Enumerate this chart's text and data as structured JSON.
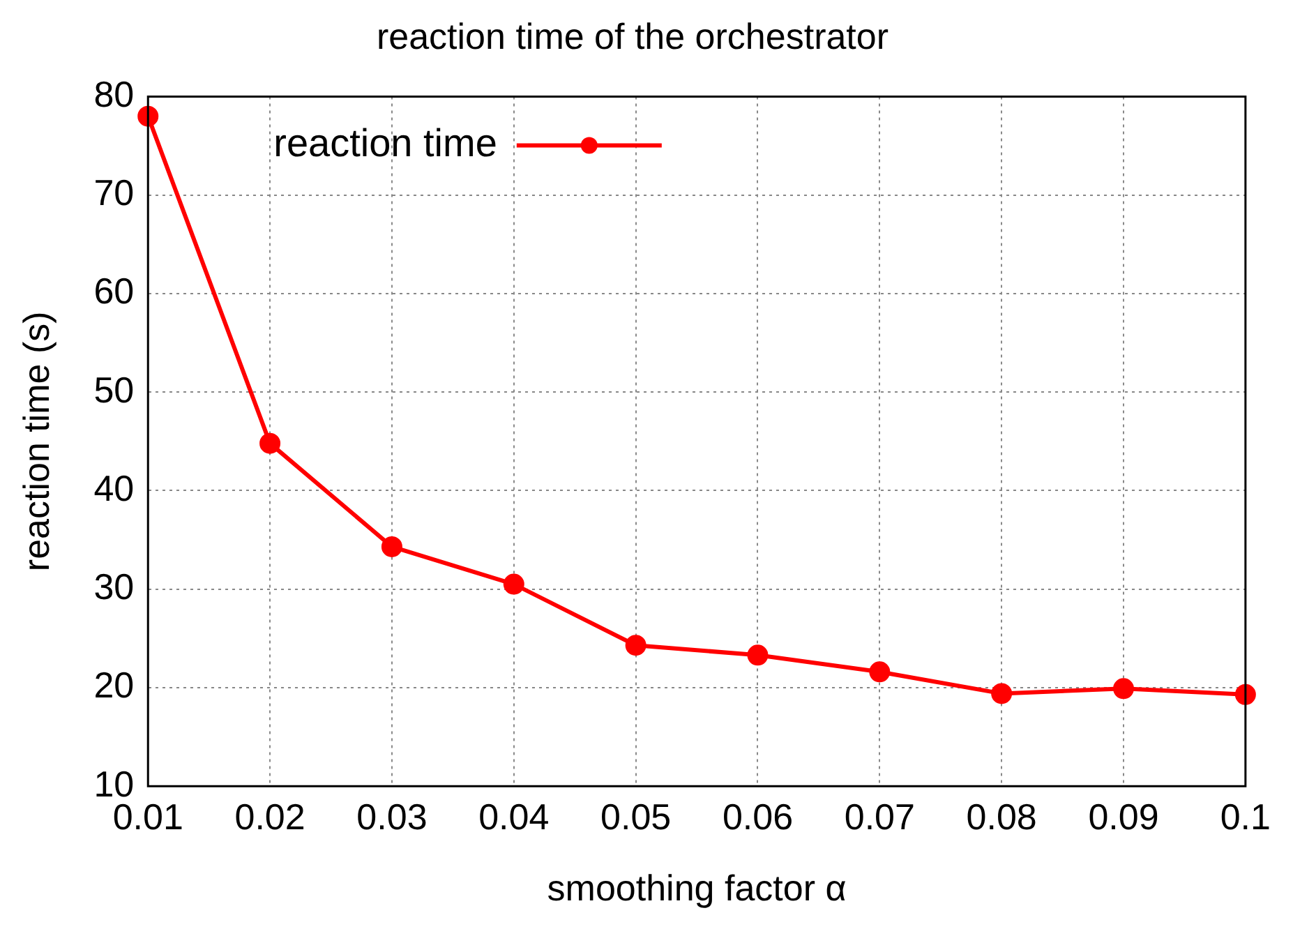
{
  "chart_data": {
    "type": "line",
    "title": "reaction time of the orchestrator",
    "xlabel": "smoothing factor α",
    "ylabel": "reaction time (s)",
    "x": [
      0.01,
      0.02,
      0.03,
      0.04,
      0.05,
      0.06,
      0.07,
      0.08,
      0.09,
      0.1
    ],
    "series": [
      {
        "name": "reaction time",
        "color": "#ff0000",
        "values": [
          78,
          44.8,
          34.3,
          30.5,
          24.3,
          23.3,
          21.6,
          19.4,
          19.9,
          19.3
        ]
      }
    ],
    "xlim": [
      0.01,
      0.1
    ],
    "xticks": [
      0.01,
      0.02,
      0.03,
      0.04,
      0.05,
      0.06,
      0.07,
      0.08,
      0.09,
      0.1
    ],
    "ylim": [
      10,
      80
    ],
    "yticks": [
      10,
      20,
      30,
      40,
      50,
      60,
      70,
      80
    ],
    "grid": true,
    "legend": "top left",
    "marker": "circle",
    "line_style": "solid"
  }
}
